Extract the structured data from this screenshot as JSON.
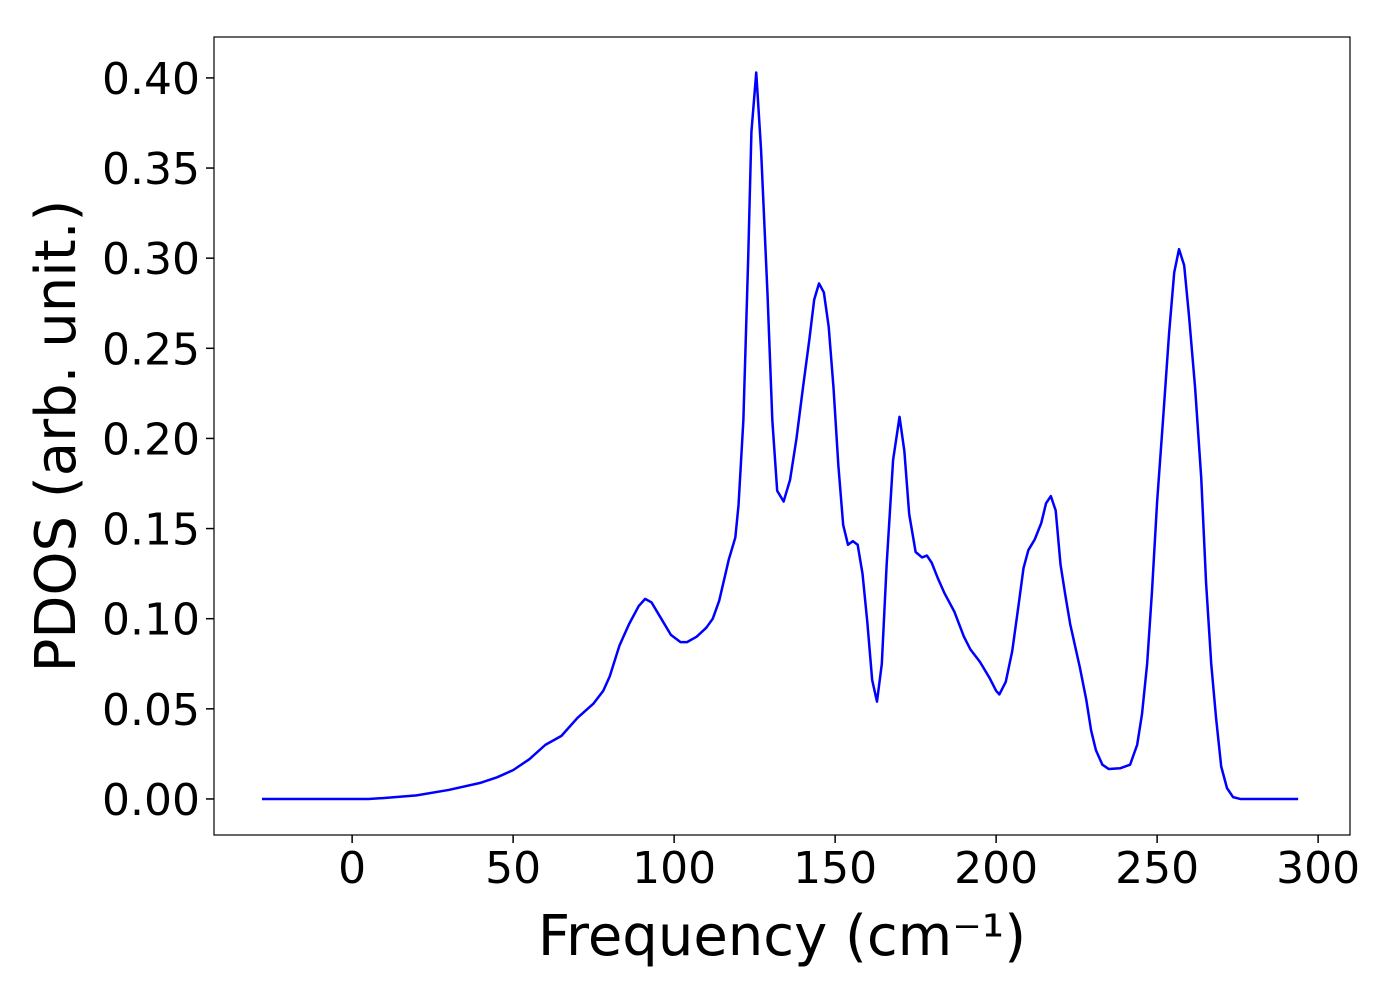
{
  "chart_data": {
    "type": "line",
    "xlabel": "Frequency (cm⁻¹)",
    "ylabel": "PDOS (arb. unit.)",
    "xlim": [
      -42.9,
      309.9
    ],
    "ylim": [
      -0.02,
      0.4227
    ],
    "xticks": [
      0,
      50,
      100,
      150,
      200,
      250,
      300
    ],
    "yticks": [
      {
        "value": 0,
        "label": "0.00"
      },
      {
        "value": 0.05,
        "label": "0.05"
      },
      {
        "value": 0.1,
        "label": "0.10"
      },
      {
        "value": 0.15,
        "label": "0.15"
      },
      {
        "value": 0.2,
        "label": "0.20"
      },
      {
        "value": 0.25,
        "label": "0.25"
      },
      {
        "value": 0.3,
        "label": "0.30"
      },
      {
        "value": 0.35,
        "label": "0.35"
      },
      {
        "value": 0.4,
        "label": "0.40"
      }
    ],
    "x": [
      -28,
      -10,
      0,
      5,
      10,
      20,
      30,
      40,
      45,
      50,
      55,
      60,
      65,
      70,
      75,
      78,
      80,
      83,
      86,
      89,
      91,
      93,
      96,
      99,
      102,
      104,
      107,
      110,
      112,
      114,
      117,
      119,
      120,
      121.5,
      123,
      124,
      125.5,
      127,
      129,
      130.5,
      132,
      134,
      136,
      138,
      140,
      142,
      143.5,
      145,
      146.5,
      148,
      149.5,
      151,
      152.5,
      154,
      155.5,
      157,
      158.5,
      160,
      161.5,
      163,
      164.5,
      166,
      168,
      170,
      171.5,
      173,
      175,
      177,
      178.5,
      180,
      182,
      184,
      187,
      190,
      192,
      195,
      198,
      200,
      201,
      203,
      205,
      207,
      208.5,
      210,
      212,
      214,
      215.5,
      217,
      218.5,
      220,
      221.5,
      223,
      226,
      228,
      229.5,
      231,
      233,
      235,
      238.5,
      241.6,
      243.8,
      245.3,
      246.9,
      248.4,
      250,
      251.9,
      253.7,
      255.3,
      256.8,
      258.4,
      259.9,
      261.8,
      263.7,
      265.2,
      266.8,
      268.3,
      269.9,
      271.7,
      273.6,
      275.8,
      293.8
    ],
    "series": [
      {
        "name": "PDOS",
        "color": "#0000ff",
        "values": [
          0,
          0,
          0,
          0,
          0.0005,
          0.002,
          0.005,
          0.009,
          0.012,
          0.016,
          0.022,
          0.03,
          0.035,
          0.045,
          0.053,
          0.06,
          0.068,
          0.085,
          0.097,
          0.107,
          0.111,
          0.109,
          0.1,
          0.091,
          0.087,
          0.087,
          0.09,
          0.095,
          0.1,
          0.11,
          0.133,
          0.145,
          0.163,
          0.21,
          0.3,
          0.37,
          0.403,
          0.36,
          0.28,
          0.21,
          0.171,
          0.165,
          0.177,
          0.2,
          0.228,
          0.255,
          0.277,
          0.286,
          0.281,
          0.262,
          0.228,
          0.185,
          0.152,
          0.141,
          0.143,
          0.141,
          0.125,
          0.098,
          0.066,
          0.054,
          0.075,
          0.13,
          0.188,
          0.212,
          0.193,
          0.158,
          0.137,
          0.134,
          0.135,
          0.131,
          0.122,
          0.114,
          0.104,
          0.09,
          0.083,
          0.076,
          0.067,
          0.06,
          0.058,
          0.065,
          0.082,
          0.108,
          0.128,
          0.138,
          0.144,
          0.153,
          0.164,
          0.168,
          0.16,
          0.13,
          0.113,
          0.097,
          0.073,
          0.055,
          0.038,
          0.027,
          0.019,
          0.0166,
          0.017,
          0.019,
          0.03,
          0.047,
          0.075,
          0.115,
          0.165,
          0.212,
          0.258,
          0.292,
          0.305,
          0.296,
          0.268,
          0.228,
          0.178,
          0.12,
          0.075,
          0.045,
          0.018,
          0.006,
          0.001,
          0,
          0
        ]
      }
    ]
  }
}
